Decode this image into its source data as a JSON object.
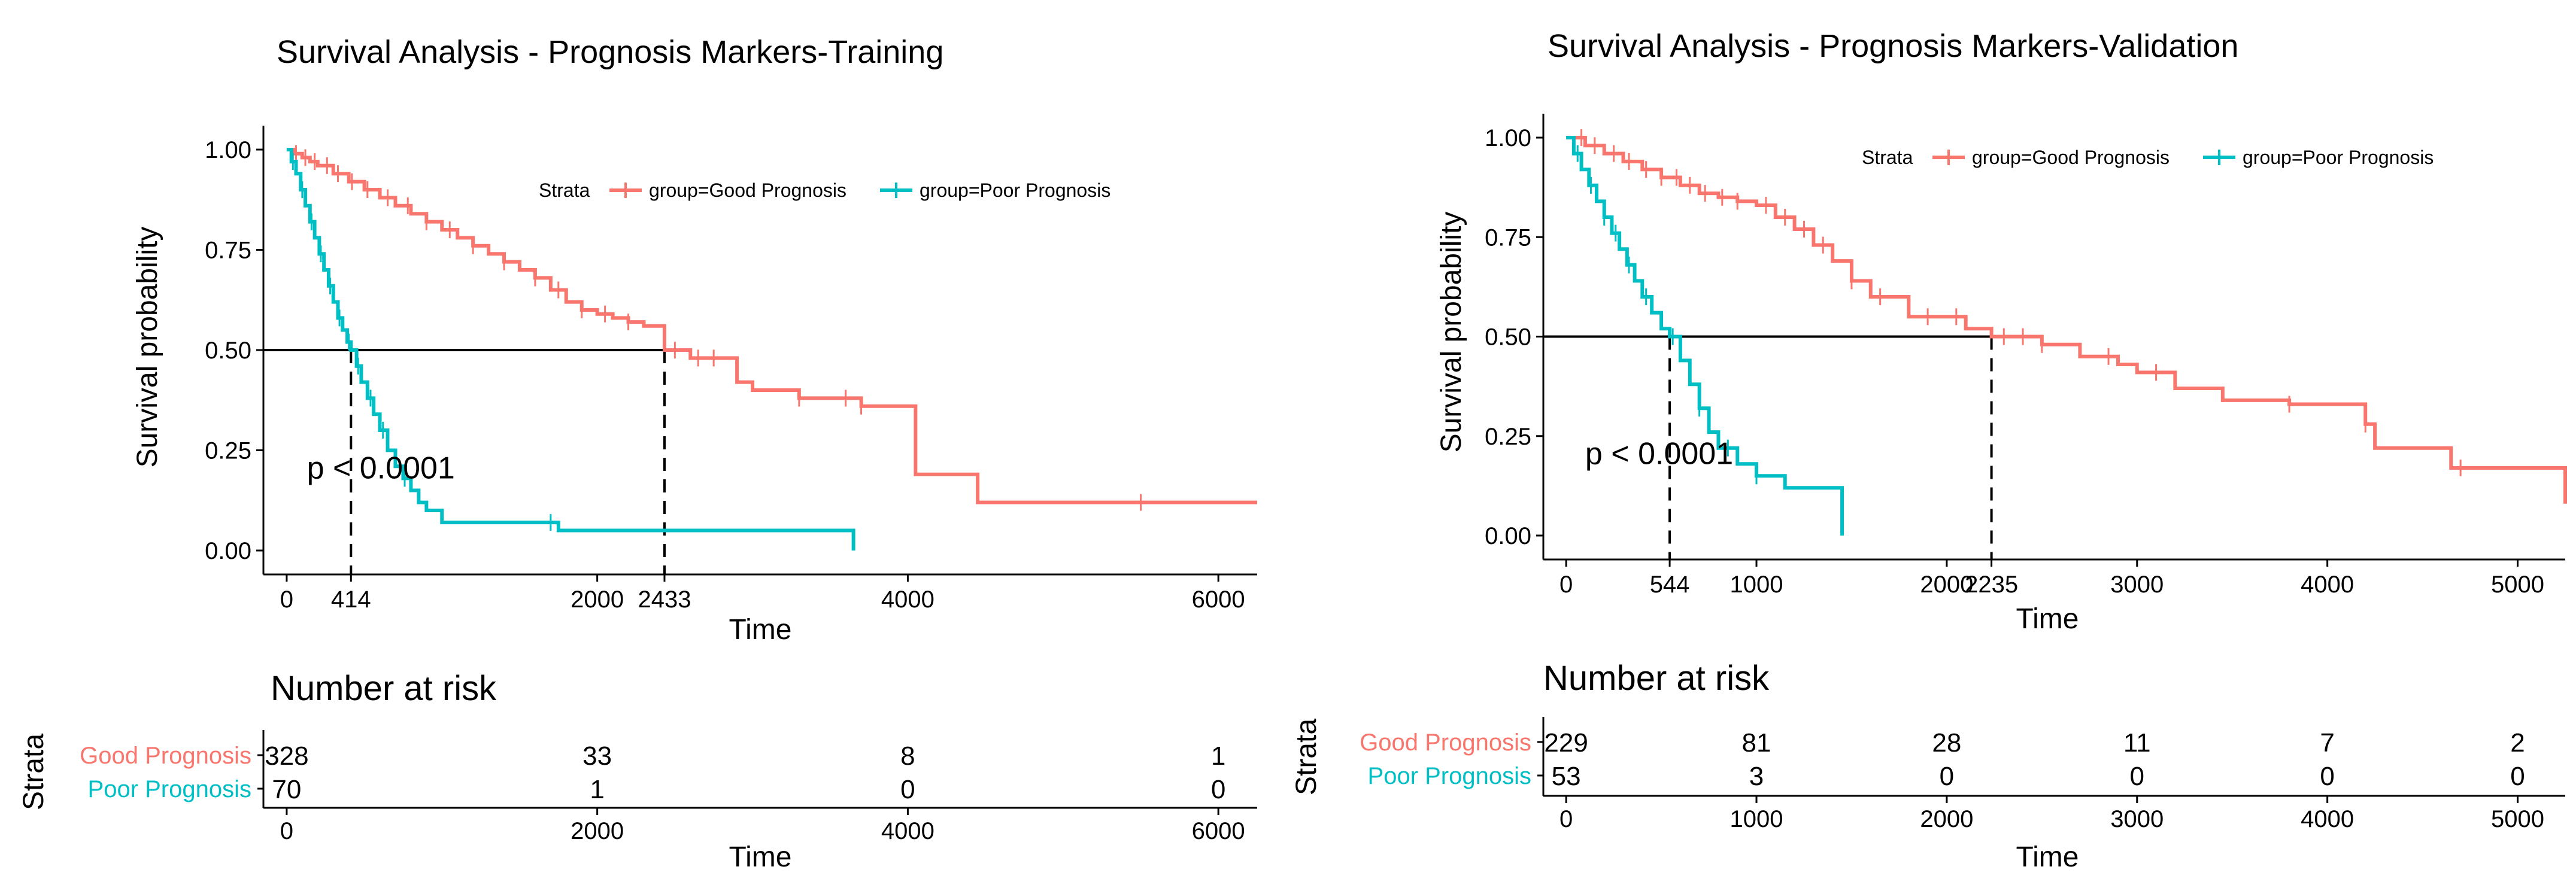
{
  "colors": {
    "good": "#F8766D",
    "poor": "#00BFC4",
    "axis": "#000000"
  },
  "chart_data": [
    {
      "id": "training",
      "type": "line",
      "title": "Survival Analysis - Prognosis Markers-Training",
      "xlabel": "Time",
      "ylabel": "Survival probability",
      "xlim": [
        -150,
        6250
      ],
      "ylim": [
        0,
        1
      ],
      "x_ticks": [
        0,
        414,
        2000,
        2433,
        4000,
        6000
      ],
      "x_tick_labels": [
        "0",
        "414",
        "2000",
        "2433",
        "4000",
        "6000"
      ],
      "y_ticks": [
        0,
        0.25,
        0.5,
        0.75,
        1.0
      ],
      "y_tick_labels": [
        "0.00",
        "0.25",
        "0.50",
        "0.75",
        "1.00"
      ],
      "pvalue": "p < 0.0001",
      "pvalue_pos": [
        130,
        0.18
      ],
      "median_line": {
        "y": 0.5,
        "x_end": 2433,
        "drops": [
          414,
          2433
        ]
      },
      "legend": {
        "title": "Strata",
        "entries": [
          "group=Good Prognosis",
          "group=Poor Prognosis"
        ]
      },
      "series": [
        {
          "name": "group=Good Prognosis",
          "x": [
            0,
            50,
            100,
            150,
            200,
            300,
            400,
            500,
            600,
            700,
            800,
            900,
            1000,
            1100,
            1200,
            1300,
            1400,
            1500,
            1600,
            1700,
            1800,
            1900,
            2000,
            2100,
            2200,
            2300,
            2433,
            2600,
            2800,
            2900,
            3000,
            3300,
            3600,
            3700,
            4000,
            4050,
            4400,
            4450,
            6250
          ],
          "y": [
            1.0,
            0.99,
            0.98,
            0.97,
            0.96,
            0.94,
            0.92,
            0.9,
            0.88,
            0.86,
            0.84,
            0.82,
            0.8,
            0.78,
            0.76,
            0.74,
            0.72,
            0.7,
            0.68,
            0.65,
            0.62,
            0.6,
            0.59,
            0.58,
            0.57,
            0.56,
            0.5,
            0.48,
            0.48,
            0.42,
            0.4,
            0.38,
            0.38,
            0.36,
            0.36,
            0.19,
            0.19,
            0.12,
            0.12
          ],
          "censor_x": [
            60,
            120,
            180,
            260,
            330,
            420,
            520,
            650,
            780,
            900,
            1050,
            1200,
            1400,
            1600,
            1750,
            1900,
            2050,
            2200,
            2500,
            2650,
            2750,
            3300,
            3600,
            3700,
            5500
          ]
        },
        {
          "name": "group=Poor Prognosis",
          "x": [
            0,
            30,
            60,
            90,
            120,
            150,
            180,
            210,
            240,
            270,
            300,
            330,
            360,
            390,
            414,
            450,
            480,
            520,
            560,
            600,
            650,
            700,
            750,
            800,
            850,
            900,
            1000,
            1700,
            1750,
            3650,
            3650
          ],
          "y": [
            1.0,
            0.97,
            0.94,
            0.9,
            0.86,
            0.82,
            0.78,
            0.74,
            0.7,
            0.66,
            0.62,
            0.58,
            0.55,
            0.52,
            0.5,
            0.46,
            0.42,
            0.38,
            0.34,
            0.3,
            0.25,
            0.21,
            0.18,
            0.15,
            0.12,
            0.1,
            0.07,
            0.07,
            0.05,
            0.05,
            0.0
          ],
          "censor_x": [
            40,
            100,
            160,
            220,
            280,
            340,
            400,
            460,
            540,
            620,
            760,
            1700
          ]
        }
      ],
      "risk_table": {
        "title": "Number at risk",
        "ylabel": "Strata",
        "xlabel": "Time",
        "times": [
          0,
          2000,
          4000,
          6000
        ],
        "time_labels": [
          "0",
          "2000",
          "4000",
          "6000"
        ],
        "rows": [
          {
            "label": "Good Prognosis",
            "values": [
              "328",
              "33",
              "8",
              "1"
            ]
          },
          {
            "label": "Poor Prognosis",
            "values": [
              "70",
              "1",
              "0",
              "0"
            ]
          }
        ]
      }
    },
    {
      "id": "validation",
      "type": "line",
      "title": "Survival Analysis - Prognosis Markers-Validation",
      "xlabel": "Time",
      "ylabel": "Survival probability",
      "xlim": [
        -120,
        5250
      ],
      "ylim": [
        0,
        1
      ],
      "x_ticks": [
        0,
        544,
        1000,
        2000,
        2235,
        3000,
        4000,
        5000
      ],
      "x_tick_labels": [
        "0",
        "544",
        "1000",
        "2000",
        "2235",
        "3000",
        "4000",
        "5000"
      ],
      "y_ticks": [
        0,
        0.25,
        0.5,
        0.75,
        1.0
      ],
      "y_tick_labels": [
        "0.00",
        "0.25",
        "0.50",
        "0.75",
        "1.00"
      ],
      "pvalue": "p < 0.0001",
      "pvalue_pos": [
        100,
        0.18
      ],
      "median_line": {
        "y": 0.5,
        "x_end": 2235,
        "drops": [
          544,
          2235
        ]
      },
      "legend": {
        "title": "Strata",
        "entries": [
          "group=Good Prognosis",
          "group=Poor Prognosis"
        ]
      },
      "series": [
        {
          "name": "group=Good Prognosis",
          "x": [
            0,
            100,
            200,
            300,
            400,
            500,
            600,
            700,
            800,
            900,
            1000,
            1100,
            1200,
            1300,
            1400,
            1500,
            1600,
            1700,
            1800,
            2100,
            2235,
            2500,
            2700,
            2900,
            3000,
            3200,
            3450,
            3800,
            4150,
            4200,
            4250,
            4600,
            4650,
            5200,
            5250
          ],
          "y": [
            1.0,
            0.98,
            0.96,
            0.94,
            0.92,
            0.9,
            0.88,
            0.86,
            0.85,
            0.84,
            0.83,
            0.8,
            0.77,
            0.73,
            0.69,
            0.64,
            0.6,
            0.6,
            0.55,
            0.52,
            0.5,
            0.48,
            0.45,
            0.43,
            0.41,
            0.37,
            0.34,
            0.33,
            0.33,
            0.28,
            0.22,
            0.22,
            0.17,
            0.17,
            0.08
          ],
          "censor_x": [
            80,
            150,
            250,
            330,
            420,
            500,
            580,
            650,
            730,
            820,
            900,
            1050,
            1150,
            1250,
            1350,
            1500,
            1650,
            1900,
            2050,
            2300,
            2400,
            2500,
            2850,
            3100,
            3800,
            4200,
            4700
          ]
        },
        {
          "name": "group=Poor Prognosis",
          "x": [
            0,
            40,
            80,
            120,
            160,
            200,
            240,
            280,
            320,
            360,
            400,
            450,
            500,
            544,
            600,
            650,
            700,
            750,
            800,
            900,
            1000,
            1150,
            1450,
            1450
          ],
          "y": [
            1.0,
            0.96,
            0.92,
            0.88,
            0.84,
            0.8,
            0.76,
            0.72,
            0.68,
            0.64,
            0.6,
            0.56,
            0.52,
            0.5,
            0.44,
            0.38,
            0.32,
            0.26,
            0.22,
            0.18,
            0.15,
            0.12,
            0.12,
            0.0
          ],
          "censor_x": [
            60,
            130,
            200,
            260,
            330,
            420,
            560,
            700,
            850,
            1000
          ]
        }
      ],
      "risk_table": {
        "title": "Number at risk",
        "ylabel": "Strata",
        "xlabel": "Time",
        "times": [
          0,
          1000,
          2000,
          3000,
          4000,
          5000
        ],
        "time_labels": [
          "0",
          "1000",
          "2000",
          "3000",
          "4000",
          "5000"
        ],
        "rows": [
          {
            "label": "Good Prognosis",
            "values": [
              "229",
              "81",
              "28",
              "11",
              "7",
              "2"
            ]
          },
          {
            "label": "Poor Prognosis",
            "values": [
              "53",
              "3",
              "0",
              "0",
              "0",
              "0"
            ]
          }
        ]
      }
    }
  ]
}
